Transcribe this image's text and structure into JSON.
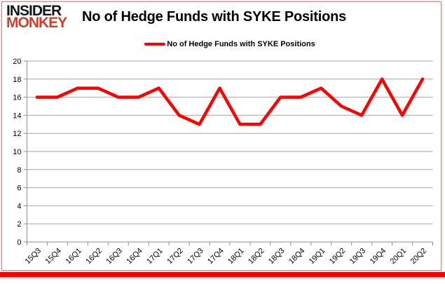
{
  "logo": {
    "line1": "INSIDER",
    "line2": "MONKEY"
  },
  "header": {
    "title": "No of Hedge Funds with SYKE Positions"
  },
  "legend": {
    "label": "No of Hedge Funds with SYKE Positions"
  },
  "chart_data": {
    "type": "line",
    "title": "No of Hedge Funds with SYKE Positions",
    "series_name": "No of Hedge Funds with SYKE Positions",
    "categories": [
      "15Q3",
      "15Q4",
      "16Q1",
      "16Q2",
      "16Q3",
      "16Q4",
      "17Q1",
      "17Q2",
      "17Q3",
      "17Q4",
      "18Q1",
      "18Q2",
      "18Q3",
      "18Q4",
      "19Q1",
      "19Q2",
      "19Q3",
      "19Q4",
      "20Q1",
      "20Q2"
    ],
    "values": [
      16,
      16,
      17,
      17,
      16,
      16,
      17,
      14,
      13,
      17,
      13,
      13,
      16,
      16,
      17,
      15,
      14,
      18,
      14,
      18
    ],
    "xlabel": "",
    "ylabel": "",
    "ylim": [
      0,
      20
    ],
    "ytick_step": 2,
    "grid": true,
    "legend_position": "top-center",
    "x_label_rotation_deg": -45,
    "colors": {
      "line": "#fe0000",
      "grid": "#a6a6a6",
      "axis": "#8c8c8c",
      "tick_text": "#000000",
      "accent_bar": "#fa0000",
      "logo_red": "#c9412a"
    }
  }
}
